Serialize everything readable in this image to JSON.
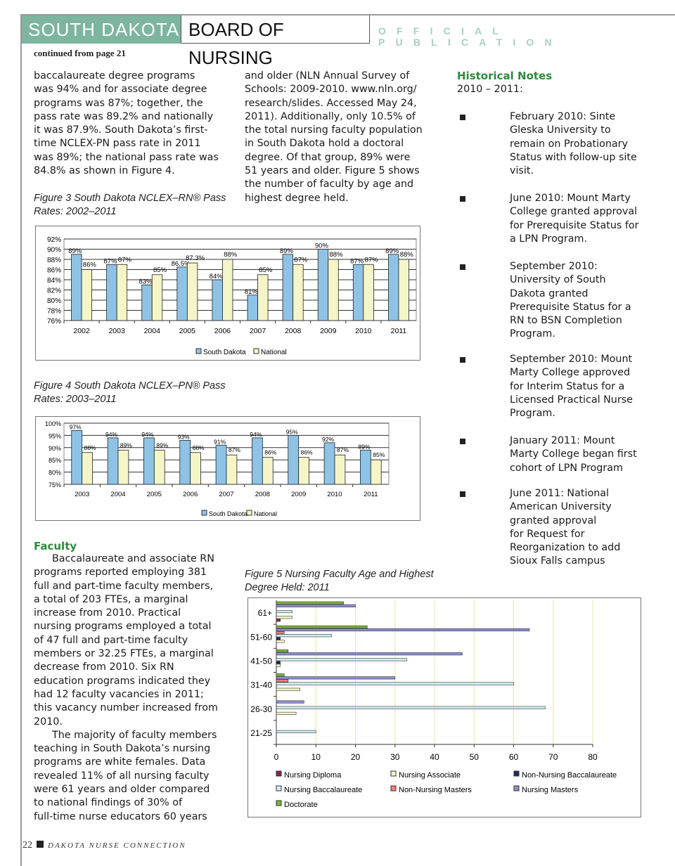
{
  "header": {
    "state": "SOUTH DAKOTA",
    "board": "BOARD OF NURSING",
    "tagline": "OFFICIAL PUBLICATION",
    "continued": "continued from page 21"
  },
  "col1_top": [
    "baccalaureate degree programs",
    "was 94% and for associate degree",
    "programs was 87%; together, the",
    "pass rate was 89.2% and nationally",
    "it was 87.9%. South Dakota’s first-",
    "time NCLEX-PN pass rate in 2011",
    "was 89%; the national pass rate was",
    "84.8% as shown in Figure 4."
  ],
  "col2_top": [
    "and older (NLN Annual Survey of",
    "Schools: 2009-2010.  www.nln.org/",
    "research/slides.  Accessed May 24,",
    "2011).  Additionally, only 10.5% of",
    "the total nursing faculty population",
    "in South Dakota hold a doctoral",
    "degree. Of that group, 89% were",
    "51 years and older.  Figure 5 shows",
    "the number of faculty by age and",
    "highest degree held."
  ],
  "captions": {
    "fig3": [
      "Figure 3 South Dakota NCLEX–RN® Pass",
      "Rates: 2002–2011"
    ],
    "fig4": [
      "Figure 4 South Dakota NCLEX–PN® Pass",
      "Rates: 2003–2011"
    ],
    "fig5": [
      "Figure 5 Nursing Faculty Age and Highest",
      "Degree Held:  2011"
    ]
  },
  "faculty": {
    "heading": "Faculty",
    "lines": [
      {
        "t": "Baccalaureate and associate RN",
        "ind": true
      },
      {
        "t": "programs reported employing 381"
      },
      {
        "t": "full and part-time faculty members,"
      },
      {
        "t": "a total of 203 FTEs, a marginal"
      },
      {
        "t": "increase from 2010.  Practical"
      },
      {
        "t": "nursing programs employed a total"
      },
      {
        "t": "of 47 full and part-time faculty"
      },
      {
        "t": "members or 32.25 FTEs, a marginal"
      },
      {
        "t": "decrease from 2010.  Six RN"
      },
      {
        "t": "education programs indicated they"
      },
      {
        "t": "had 12 faculty vacancies in 2011;"
      },
      {
        "t": "this vacancy number increased from"
      },
      {
        "t": "2010."
      },
      {
        "t": "The majority of faculty members",
        "ind": true
      },
      {
        "t": "teaching in South Dakota’s nursing"
      },
      {
        "t": "programs are white females.   Data"
      },
      {
        "t": "revealed 11% of all nursing faculty"
      },
      {
        "t": "were 61 years and older compared"
      },
      {
        "t": "to national findings of 30% of"
      },
      {
        "t": "full-time nurse educators 60 years"
      }
    ]
  },
  "historical": {
    "heading": "Historical Notes",
    "range": "2010 – 2011:",
    "items": [
      [
        "February 2010:  Sinte",
        "Gleska University to",
        "remain on Probationary",
        "Status with follow-up site",
        "visit."
      ],
      [
        "June 2010: Mount Marty",
        "College granted approval",
        "for Prerequisite Status for",
        "a LPN Program."
      ],
      [
        "September 2010:",
        "University of South",
        "Dakota granted",
        "Prerequisite Status for a",
        "RN to BSN Completion",
        "Program."
      ],
      [
        "September 2010: Mount",
        "Marty College approved",
        "for Interim Status for a",
        "Licensed Practical Nurse",
        "Program."
      ],
      [
        "January 2011: Mount",
        "Marty College began first",
        "cohort of LPN Program"
      ],
      [
        "June 2011: National",
        "American University",
        "granted approval",
        "for Request for",
        "Reorganization to add",
        "Sioux Falls campus"
      ]
    ]
  },
  "footer": {
    "page": "22",
    "publication": "DAKOTA NURSE CONNECTION"
  },
  "colors": {
    "brand": "#7db59f",
    "sd": "#8fc3e6",
    "national": "#f5f5c8"
  },
  "chart_data": [
    {
      "type": "bar",
      "title": "Figure 3 South Dakota NCLEX–RN® Pass Rates: 2002–2011",
      "categories": [
        "2002",
        "2003",
        "2004",
        "2005",
        "2006",
        "2007",
        "2008",
        "2009",
        "2010",
        "2011"
      ],
      "series": [
        {
          "name": "South Dakota",
          "values": [
            89,
            87,
            83,
            86.5,
            84,
            81,
            89,
            90,
            87,
            89
          ],
          "labels": [
            "89%",
            "87%",
            "83%",
            "86.5%",
            "84%",
            "81%",
            "89%",
            "90%",
            "87%",
            "89%"
          ]
        },
        {
          "name": "National",
          "values": [
            86,
            87,
            85,
            87.3,
            88,
            85,
            87,
            88,
            87,
            88
          ],
          "labels": [
            "86%",
            "87%",
            "85%",
            "87.3%",
            "88%",
            "85%",
            "87%",
            "88%",
            "87%",
            "88%"
          ]
        }
      ],
      "ylim": [
        76,
        92
      ],
      "yticks": [
        "76%",
        "78%",
        "80%",
        "82%",
        "84%",
        "86%",
        "88%",
        "90%",
        "92%"
      ],
      "ystep": 2,
      "legend": "bottom",
      "grid": true
    },
    {
      "type": "bar",
      "title": "Figure 4 South Dakota NCLEX–PN® Pass Rates: 2003–2011",
      "categories": [
        "2003",
        "2004",
        "2005",
        "2006",
        "2007",
        "2008",
        "2009",
        "2010",
        "2011"
      ],
      "series": [
        {
          "name": "South Dakota",
          "values": [
            97,
            94,
            94,
            93,
            91,
            94,
            95,
            92,
            89
          ],
          "labels": [
            "97%",
            "94%",
            "94%",
            "93%",
            "91%",
            "94%",
            "95%",
            "92%",
            "89%"
          ]
        },
        {
          "name": "National",
          "values": [
            88,
            89,
            89,
            88,
            87,
            86,
            86,
            87,
            85
          ],
          "labels": [
            "88%",
            "89%",
            "89%",
            "88%",
            "87%",
            "86%",
            "86%",
            "87%",
            "85%"
          ]
        }
      ],
      "ylim": [
        75,
        100
      ],
      "yticks": [
        "75%",
        "80%",
        "85%",
        "90%",
        "95%",
        "100%"
      ],
      "ystep": 5,
      "legend": "bottom",
      "grid": true
    },
    {
      "type": "bar",
      "orientation": "horizontal",
      "title": "Figure 5 Nursing Faculty Age and Highest Degree Held: 2011",
      "categories": [
        "61+",
        "51-60",
        "41-50",
        "31-40",
        "26-30",
        "21-25"
      ],
      "series": [
        {
          "name": "Nursing Diploma",
          "color": "#8b2252",
          "values": [
            1,
            0,
            0,
            0,
            0,
            0
          ]
        },
        {
          "name": "Nursing Associate",
          "color": "#f5f5c8",
          "values": [
            4,
            2,
            1,
            6,
            5,
            0
          ]
        },
        {
          "name": "Non-Nursing Baccalaureate",
          "color": "#1f2a6b",
          "values": [
            0,
            1,
            1,
            0,
            0,
            0
          ]
        },
        {
          "name": "Nursing Baccalaureate",
          "color": "#cfeef2",
          "values": [
            4,
            14,
            33,
            60,
            68,
            10
          ]
        },
        {
          "name": "Non-Nursing Masters",
          "color": "#f08080",
          "values": [
            0,
            2,
            0,
            3,
            0,
            0
          ]
        },
        {
          "name": "Nursing Masters",
          "color": "#8f8fcf",
          "values": [
            20,
            64,
            47,
            30,
            7,
            0
          ]
        },
        {
          "name": "Doctorate",
          "color": "#7ab733",
          "values": [
            17,
            23,
            3,
            2,
            0,
            0
          ]
        }
      ],
      "xlim": [
        0,
        80
      ],
      "xticks": [
        "0",
        "10",
        "20",
        "30",
        "40",
        "50",
        "60",
        "70",
        "80"
      ],
      "legend": "bottom",
      "grid": true
    }
  ]
}
